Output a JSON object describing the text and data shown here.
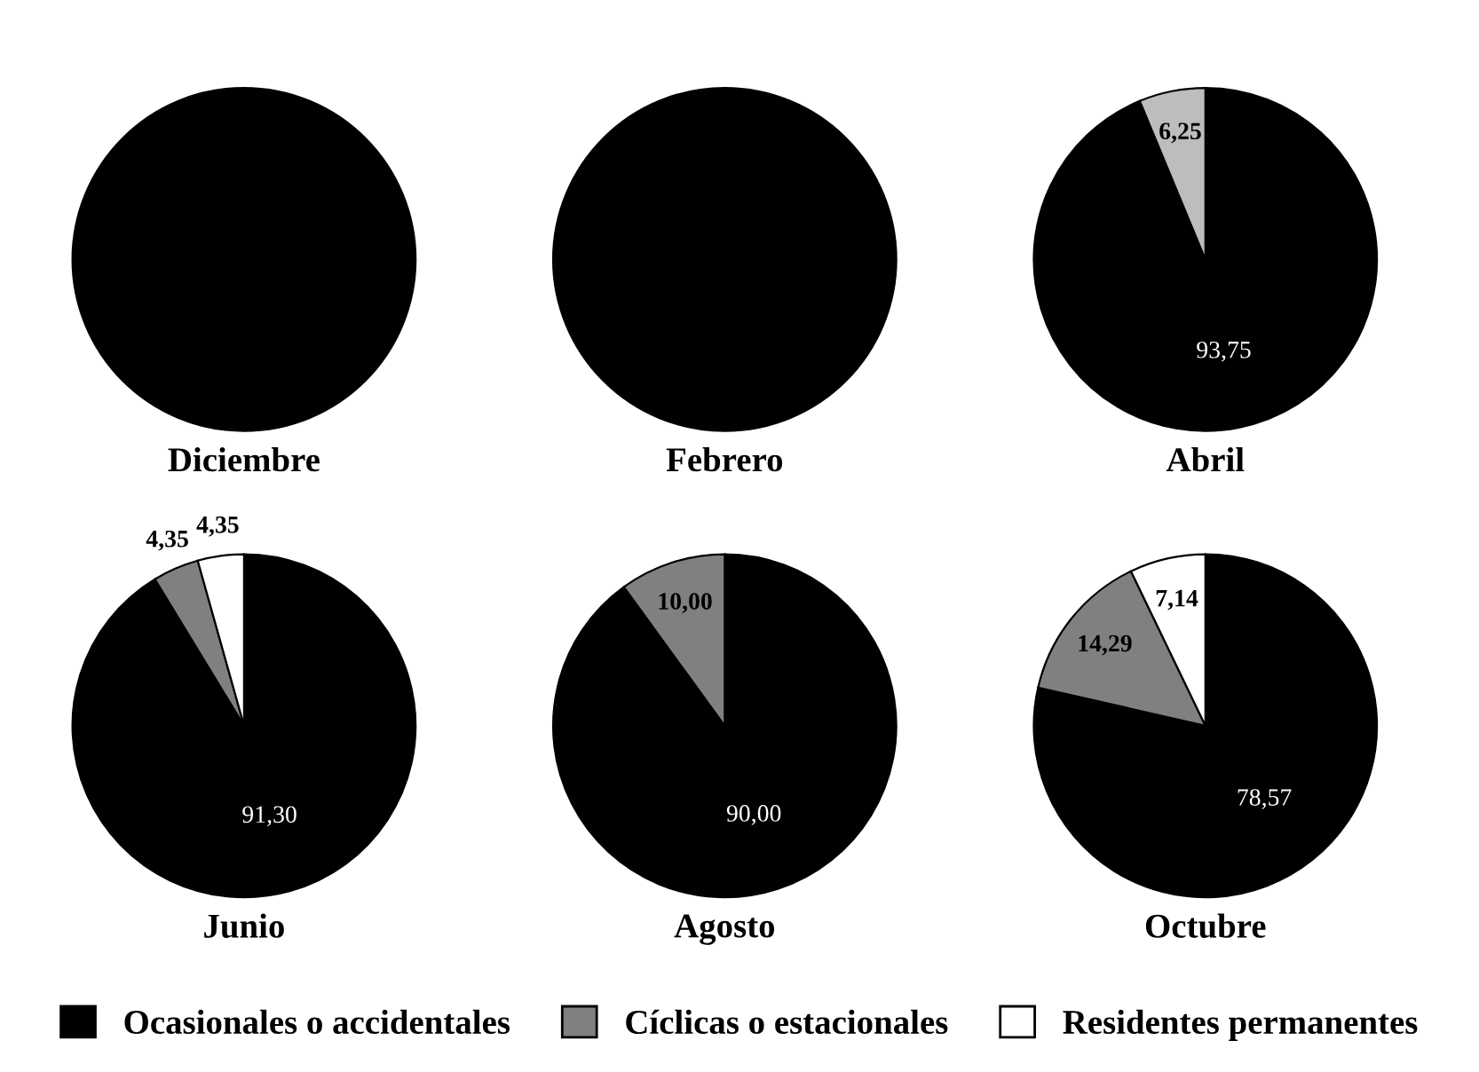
{
  "chart_data": [
    {
      "type": "pie",
      "title": "Diciembre",
      "categories": [
        null
      ],
      "values": [
        100
      ],
      "colors": [
        "#000000"
      ],
      "value_labels": [
        null
      ]
    },
    {
      "type": "pie",
      "title": "Febrero",
      "categories": [
        null
      ],
      "values": [
        100
      ],
      "colors": [
        "#000000"
      ],
      "value_labels": [
        null
      ]
    },
    {
      "type": "pie",
      "title": "Abril",
      "categories": [
        null,
        null
      ],
      "values": [
        93.75,
        6.25
      ],
      "colors": [
        "#000000",
        "#bdbdbd"
      ],
      "value_labels": [
        "93,75",
        "6,25"
      ]
    },
    {
      "type": "pie",
      "title": "Junio",
      "categories": [
        null,
        null,
        null
      ],
      "values": [
        91.3,
        4.35,
        4.35
      ],
      "colors": [
        "#000000",
        "#808080",
        "#ffffff"
      ],
      "value_labels": [
        "91,30",
        "4,35",
        "4,35"
      ]
    },
    {
      "type": "pie",
      "title": "Agosto",
      "categories": [
        null,
        null
      ],
      "values": [
        90.0,
        10.0
      ],
      "colors": [
        "#000000",
        "#808080"
      ],
      "value_labels": [
        "90,00",
        "10,00"
      ]
    },
    {
      "type": "pie",
      "title": "Octubre",
      "categories": [
        "Ocasionales o accidentales",
        "Cíclicas o estacionales",
        "Residentes permanentes"
      ],
      "values": [
        78.57,
        14.29,
        7.14
      ],
      "colors": [
        "#000000",
        "#808080",
        "#ffffff"
      ],
      "value_labels": [
        "78,57",
        "14,29",
        "7,14"
      ],
      "legend": "bottom"
    }
  ]
}
